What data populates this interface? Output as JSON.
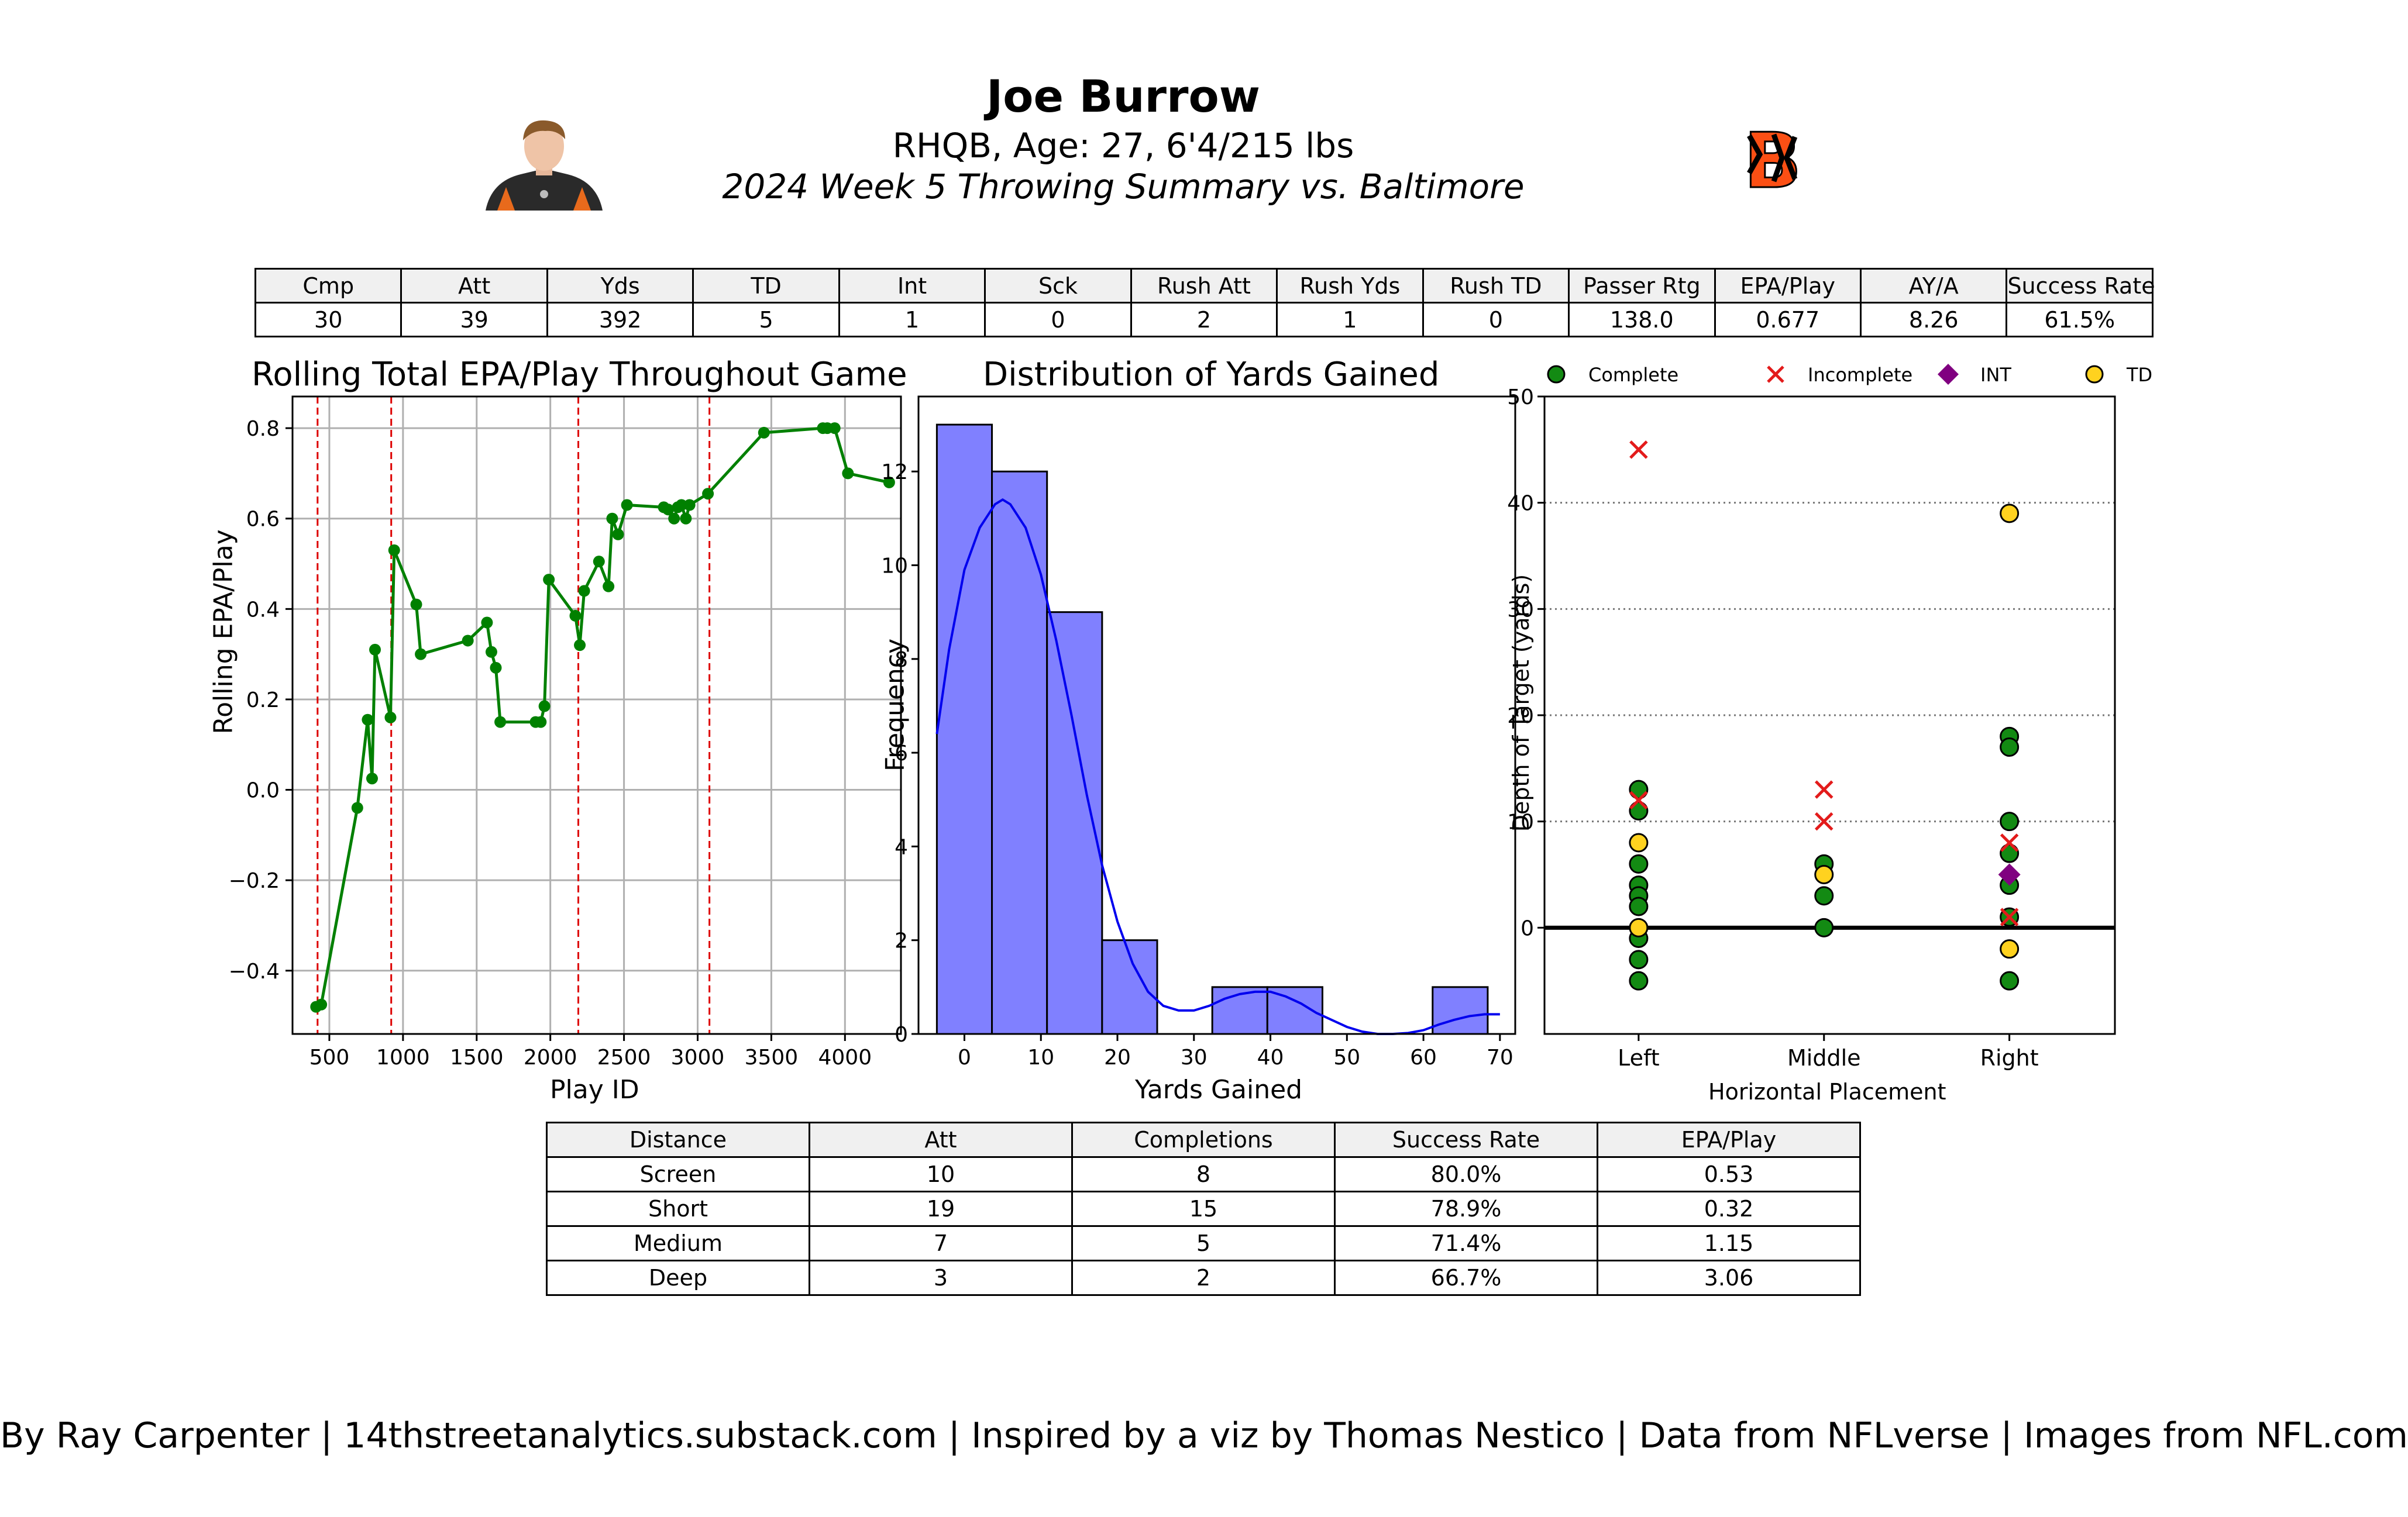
{
  "header": {
    "name": "Joe Burrow",
    "subtitle1": "RHQB, Age: 27, 6'4/215 lbs",
    "subtitle2": "2024 Week 5 Throwing Summary vs. Baltimore",
    "logo_text": "B"
  },
  "summary_table": {
    "headers": [
      "Cmp",
      "Att",
      "Yds",
      "TD",
      "Int",
      "Sck",
      "Rush Att",
      "Rush Yds",
      "Rush TD",
      "Passer Rtg",
      "EPA/Play",
      "AY/A",
      "Success Rate"
    ],
    "values": [
      "30",
      "39",
      "392",
      "5",
      "1",
      "0",
      "2",
      "1",
      "0",
      "138.0",
      "0.677",
      "8.26",
      "61.5%"
    ]
  },
  "distance_table": {
    "headers": [
      "Distance",
      "Att",
      "Completions",
      "Success Rate",
      "EPA/Play"
    ],
    "rows": [
      [
        "Screen",
        "10",
        "8",
        "80.0%",
        "0.53"
      ],
      [
        "Short",
        "19",
        "15",
        "78.9%",
        "0.32"
      ],
      [
        "Medium",
        "7",
        "5",
        "71.4%",
        "1.15"
      ],
      [
        "Deep",
        "3",
        "2",
        "66.7%",
        "3.06"
      ]
    ]
  },
  "footer": "By Ray Carpenter | 14thstreetanalytics.substack.com | Inspired by a viz by Thomas Nestico | Data from NFLverse | Images from NFL.com",
  "chart_data": [
    {
      "type": "line",
      "title": "Rolling Total EPA/Play Throughout Game",
      "xlabel": "Play ID",
      "ylabel": "Rolling EPA/Play",
      "xlim": [
        250,
        4380
      ],
      "ylim": [
        -0.54,
        0.87
      ],
      "xticks": [
        500,
        1000,
        1500,
        2000,
        2500,
        3000,
        3500,
        4000
      ],
      "yticks": [
        -0.4,
        -0.2,
        0.0,
        0.2,
        0.4,
        0.6,
        0.8
      ],
      "grid": true,
      "color": "#008000",
      "quarter_lines": [
        420,
        920,
        2190,
        3080
      ],
      "quarter_line_color": "#dd0000",
      "x": [
        410,
        445,
        690,
        760,
        790,
        810,
        915,
        940,
        1090,
        1120,
        1440,
        1570,
        1600,
        1630,
        1660,
        1900,
        1935,
        1960,
        1990,
        2170,
        2200,
        2230,
        2330,
        2395,
        2420,
        2460,
        2520,
        2770,
        2800,
        2840,
        2865,
        2890,
        2920,
        2945,
        3070,
        3450,
        3850,
        3880,
        3930,
        4020,
        4300
      ],
      "y": [
        -0.48,
        -0.475,
        -0.04,
        0.155,
        0.025,
        0.31,
        0.16,
        0.53,
        0.41,
        0.3,
        0.33,
        0.37,
        0.305,
        0.27,
        0.15,
        0.15,
        0.15,
        0.185,
        0.465,
        0.385,
        0.32,
        0.44,
        0.505,
        0.45,
        0.6,
        0.565,
        0.63,
        0.625,
        0.62,
        0.6,
        0.625,
        0.63,
        0.6,
        0.63,
        0.655,
        0.79,
        0.8,
        0.8,
        0.8,
        0.7,
        0.68
      ]
    },
    {
      "type": "bar",
      "title": "Distribution of Yards Gained",
      "xlabel": "Yards Gained",
      "ylabel": "Frequency",
      "xlim": [
        -6,
        72
      ],
      "ylim": [
        0,
        13.6
      ],
      "xticks": [
        0,
        10,
        20,
        30,
        40,
        50,
        60,
        70
      ],
      "yticks": [
        0,
        2,
        4,
        6,
        8,
        10,
        12
      ],
      "bar_color": "#8080ff",
      "kde_color": "#0000ee",
      "bins": [
        {
          "from": -3.6,
          "to": 3.6,
          "count": 13
        },
        {
          "from": 3.6,
          "to": 10.8,
          "count": 12
        },
        {
          "from": 10.8,
          "to": 18.0,
          "count": 9
        },
        {
          "from": 18.0,
          "to": 25.2,
          "count": 2
        },
        {
          "from": 25.2,
          "to": 32.4,
          "count": 0
        },
        {
          "from": 32.4,
          "to": 39.6,
          "count": 1
        },
        {
          "from": 39.6,
          "to": 46.8,
          "count": 1
        },
        {
          "from": 46.8,
          "to": 54.0,
          "count": 0
        },
        {
          "from": 54.0,
          "to": 61.2,
          "count": 0
        },
        {
          "from": 61.2,
          "to": 68.4,
          "count": 1
        }
      ],
      "kde": {
        "x": [
          -3.6,
          -2,
          0,
          2,
          4,
          5,
          6,
          8,
          10,
          12,
          14,
          16,
          18,
          20,
          22,
          24,
          26,
          28,
          30,
          32,
          34,
          36,
          38,
          40,
          42,
          44,
          46,
          48,
          50,
          52,
          54,
          56,
          58,
          60,
          62,
          64,
          66,
          68,
          70
        ],
        "y": [
          6.4,
          8.2,
          9.9,
          10.8,
          11.3,
          11.4,
          11.3,
          10.8,
          9.8,
          8.4,
          6.8,
          5.1,
          3.6,
          2.4,
          1.5,
          0.9,
          0.6,
          0.5,
          0.5,
          0.6,
          0.75,
          0.85,
          0.9,
          0.9,
          0.8,
          0.65,
          0.45,
          0.3,
          0.15,
          0.05,
          0.0,
          0.0,
          0.02,
          0.08,
          0.2,
          0.3,
          0.38,
          0.42,
          0.42
        ]
      }
    },
    {
      "type": "scatter",
      "xlabel": "Horizontal Placement",
      "ylabel": "Depth of Target (yards)",
      "categories": [
        "Left",
        "Middle",
        "Right"
      ],
      "ylim": [
        -10,
        50
      ],
      "yticks": [
        0,
        10,
        20,
        30,
        40,
        50
      ],
      "legend": [
        "Complete",
        "Incomplete",
        "INT",
        "TD"
      ],
      "legend_placement": "top",
      "colors": {
        "Complete": "#138a13",
        "Incomplete": "#e31b1b",
        "INT": "#800080",
        "TD": "#ffd21f"
      },
      "points": [
        {
          "x": "Left",
          "y": 45,
          "t": "Incomplete"
        },
        {
          "x": "Left",
          "y": 13,
          "t": "Complete"
        },
        {
          "x": "Left",
          "y": 12,
          "t": "Incomplete"
        },
        {
          "x": "Left",
          "y": 11,
          "t": "Complete"
        },
        {
          "x": "Left",
          "y": 8,
          "t": "TD"
        },
        {
          "x": "Left",
          "y": 6,
          "t": "Complete"
        },
        {
          "x": "Left",
          "y": 4,
          "t": "Complete"
        },
        {
          "x": "Left",
          "y": 3,
          "t": "Complete"
        },
        {
          "x": "Left",
          "y": 2,
          "t": "Complete"
        },
        {
          "x": "Left",
          "y": 0,
          "t": "TD"
        },
        {
          "x": "Left",
          "y": -1,
          "t": "Complete"
        },
        {
          "x": "Left",
          "y": -3,
          "t": "Complete"
        },
        {
          "x": "Left",
          "y": -5,
          "t": "Complete"
        },
        {
          "x": "Middle",
          "y": 13,
          "t": "Incomplete"
        },
        {
          "x": "Middle",
          "y": 10,
          "t": "Incomplete"
        },
        {
          "x": "Middle",
          "y": 6,
          "t": "Complete"
        },
        {
          "x": "Middle",
          "y": 5,
          "t": "TD"
        },
        {
          "x": "Middle",
          "y": 3,
          "t": "Complete"
        },
        {
          "x": "Middle",
          "y": 0,
          "t": "Complete"
        },
        {
          "x": "Right",
          "y": 39,
          "t": "TD"
        },
        {
          "x": "Right",
          "y": 18,
          "t": "Complete"
        },
        {
          "x": "Right",
          "y": 17,
          "t": "Complete"
        },
        {
          "x": "Right",
          "y": 10,
          "t": "Complete"
        },
        {
          "x": "Right",
          "y": 8,
          "t": "Incomplete"
        },
        {
          "x": "Right",
          "y": 7,
          "t": "Complete"
        },
        {
          "x": "Right",
          "y": 5,
          "t": "INT"
        },
        {
          "x": "Right",
          "y": 4,
          "t": "Complete"
        },
        {
          "x": "Right",
          "y": 1,
          "t": "Incomplete"
        },
        {
          "x": "Right",
          "y": 1,
          "t": "Complete"
        },
        {
          "x": "Right",
          "y": -2,
          "t": "TD"
        },
        {
          "x": "Right",
          "y": -5,
          "t": "Complete"
        }
      ]
    }
  ]
}
